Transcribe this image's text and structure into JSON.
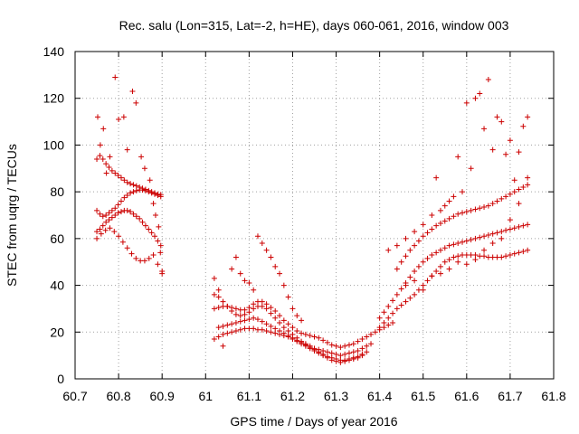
{
  "chart_data": {
    "type": "scatter",
    "title": "Rec. salu (Lon=315, Lat=-2, h=HE), days 060-061, 2016, window 003",
    "xlabel": "GPS time / Days of year 2016",
    "ylabel": "STEC from uqrg / TECUs",
    "xlim": [
      60.7,
      61.8
    ],
    "ylim": [
      0,
      140
    ],
    "xticks": [
      "60.7",
      "60.8",
      "60.9",
      "61",
      "61.1",
      "61.2",
      "61.3",
      "61.4",
      "61.5",
      "61.6",
      "61.7",
      "61.8"
    ],
    "yticks": [
      "0",
      "20",
      "40",
      "60",
      "80",
      "100",
      "120",
      "140"
    ],
    "grid": true,
    "marker": "plus",
    "color": "#cc0000",
    "series": [
      {
        "x": [
          60.75,
          60.757,
          60.764,
          60.771,
          60.778,
          60.785,
          60.792,
          60.799,
          60.806,
          60.813,
          60.82,
          60.827,
          60.834,
          60.841,
          60.848,
          60.855,
          60.862,
          60.869,
          60.876,
          60.883,
          60.89,
          60.897
        ],
        "y": [
          94.0,
          95.5,
          94.0,
          92.0,
          90.5,
          89.0,
          88.0,
          87.0,
          86.0,
          85.0,
          84.0,
          83.5,
          83.0,
          82.5,
          82.0,
          81.5,
          81.0,
          80.5,
          80.0,
          79.5,
          79.0,
          78.8
        ]
      },
      {
        "x": [
          60.75,
          60.757,
          60.764,
          60.771,
          60.778,
          60.785,
          60.792,
          60.799,
          60.806,
          60.813,
          60.82,
          60.827,
          60.834,
          60.841,
          60.848,
          60.855,
          60.862,
          60.869,
          60.876,
          60.883,
          60.89,
          60.897
        ],
        "y": [
          72.0,
          70.5,
          69.5,
          70.0,
          71.0,
          72.0,
          73.0,
          74.5,
          76.0,
          77.5,
          78.5,
          79.5,
          80.0,
          80.5,
          80.8,
          80.8,
          80.5,
          80.0,
          79.5,
          79.0,
          78.5,
          78.0
        ]
      },
      {
        "x": [
          60.75,
          60.757,
          60.764,
          60.771,
          60.778,
          60.785,
          60.792,
          60.799,
          60.806,
          60.813,
          60.82,
          60.827,
          60.834,
          60.841,
          60.848,
          60.855,
          60.862,
          60.869,
          60.876,
          60.883,
          60.89,
          60.897
        ],
        "y": [
          63.0,
          64.0,
          65.5,
          67.0,
          68.0,
          69.0,
          70.0,
          71.0,
          71.5,
          72.0,
          72.0,
          71.5,
          70.5,
          69.5,
          68.5,
          67.0,
          65.5,
          64.0,
          62.5,
          61.0,
          59.0,
          57.0
        ]
      },
      {
        "x": [
          60.75,
          60.76,
          60.77,
          60.78,
          60.79,
          60.8,
          60.81,
          60.82,
          60.83,
          60.84,
          60.85,
          60.86,
          60.87,
          60.88,
          60.89,
          60.9
        ],
        "y": [
          60.0,
          62.0,
          63.5,
          64.5,
          63.0,
          61.0,
          58.5,
          56.0,
          53.5,
          51.5,
          50.5,
          50.5,
          51.5,
          53.0,
          49.0,
          45.0
        ]
      },
      {
        "x": [
          60.752,
          60.758,
          60.765,
          60.772,
          60.78,
          60.792,
          60.8,
          60.812,
          60.82,
          60.832,
          60.84,
          60.852,
          60.86,
          60.872,
          60.88,
          60.885,
          60.892,
          60.896,
          60.9
        ],
        "y": [
          112.0,
          100.0,
          107.0,
          88.0,
          95.0,
          129.0,
          111.0,
          112.0,
          98.0,
          123.0,
          118.0,
          95.0,
          90.0,
          85.0,
          75.0,
          70.0,
          65.0,
          54.0,
          46.0
        ]
      },
      {
        "x": [
          61.02,
          61.03,
          61.04,
          61.05,
          61.06,
          61.07,
          61.08,
          61.09,
          61.1,
          61.11,
          61.12,
          61.13,
          61.14,
          61.15,
          61.16,
          61.17,
          61.18,
          61.19,
          61.2,
          61.21,
          61.22,
          61.23,
          61.24,
          61.25,
          61.26,
          61.27,
          61.28,
          61.29,
          61.3,
          61.31,
          61.32,
          61.33,
          61.34,
          61.35,
          61.36,
          61.37,
          61.38,
          61.39,
          61.4,
          61.41,
          61.42,
          61.43
        ],
        "y": [
          30.0,
          30.5,
          31.0,
          31.0,
          30.5,
          30.0,
          29.5,
          29.5,
          30.5,
          32.0,
          33.0,
          33.0,
          32.0,
          30.5,
          29.0,
          27.0,
          25.0,
          23.5,
          22.0,
          20.5,
          19.5,
          19.0,
          18.5,
          18.0,
          17.5,
          16.5,
          15.5,
          14.5,
          14.0,
          13.5,
          14.0,
          14.5,
          15.0,
          16.0,
          17.0,
          18.0,
          19.0,
          20.0,
          21.0,
          22.0,
          23.0,
          24.0
        ]
      },
      {
        "x": [
          61.02,
          61.03,
          61.04,
          61.05,
          61.06,
          61.07,
          61.08,
          61.09,
          61.1,
          61.11,
          61.12,
          61.13,
          61.14,
          61.15,
          61.16,
          61.17,
          61.18,
          61.19,
          61.2,
          61.21,
          61.22,
          61.23,
          61.24,
          61.25,
          61.26,
          61.27,
          61.28,
          61.29,
          61.3,
          61.31,
          61.32,
          61.33,
          61.34,
          61.35,
          61.36,
          61.37,
          61.38
        ],
        "y": [
          36.0,
          35.0,
          33.0,
          31.0,
          29.0,
          27.5,
          27.0,
          27.5,
          28.5,
          30.0,
          31.0,
          31.0,
          30.0,
          28.0,
          26.0,
          24.0,
          22.0,
          20.5,
          19.0,
          17.5,
          16.0,
          15.0,
          14.0,
          13.0,
          12.5,
          12.0,
          11.5,
          11.0,
          10.5,
          10.0,
          10.5,
          11.0,
          11.5,
          12.0,
          13.0,
          14.0,
          15.0
        ]
      },
      {
        "x": [
          61.03,
          61.04,
          61.05,
          61.06,
          61.07,
          61.08,
          61.09,
          61.1,
          61.11,
          61.12,
          61.13,
          61.14,
          61.15,
          61.16,
          61.17,
          61.18,
          61.19,
          61.2,
          61.21,
          61.22,
          61.23,
          61.24,
          61.25,
          61.26,
          61.27,
          61.28,
          61.29,
          61.3,
          61.31,
          61.32,
          61.33,
          61.34,
          61.35,
          61.36,
          61.37
        ],
        "y": [
          22.0,
          22.5,
          23.0,
          23.5,
          24.0,
          24.5,
          25.0,
          25.5,
          26.0,
          25.5,
          24.5,
          23.5,
          22.5,
          21.5,
          20.5,
          19.5,
          18.5,
          17.5,
          16.5,
          15.5,
          14.5,
          13.5,
          12.5,
          11.5,
          10.5,
          9.5,
          9.0,
          8.5,
          8.0,
          8.0,
          8.5,
          9.0,
          9.5,
          10.5,
          11.5
        ]
      },
      {
        "x": [
          61.02,
          61.03,
          61.04,
          61.05,
          61.06,
          61.07,
          61.08,
          61.09,
          61.1,
          61.11,
          61.12,
          61.13,
          61.14,
          61.15,
          61.16,
          61.17,
          61.18,
          61.19,
          61.2,
          61.21,
          61.22,
          61.23,
          61.24,
          61.25,
          61.26,
          61.27,
          61.28,
          61.29,
          61.3,
          61.31,
          61.32,
          61.33,
          61.34,
          61.35,
          61.36
        ],
        "y": [
          17.0,
          18.0,
          19.0,
          19.5,
          20.0,
          20.5,
          21.0,
          21.5,
          21.5,
          21.5,
          21.0,
          21.0,
          20.5,
          20.0,
          19.5,
          19.0,
          18.5,
          18.0,
          17.0,
          16.0,
          15.0,
          14.0,
          13.0,
          12.0,
          11.0,
          10.0,
          9.0,
          8.0,
          7.5,
          7.0,
          7.5,
          8.0,
          8.5,
          9.0,
          10.0
        ]
      },
      {
        "x": [
          61.02,
          61.03,
          61.04,
          61.06,
          61.07,
          61.08,
          61.09,
          61.1,
          61.11,
          61.12,
          61.13,
          61.14,
          61.15,
          61.16,
          61.17,
          61.18,
          61.19,
          61.2,
          61.21,
          61.22
        ],
        "y": [
          43.0,
          38.0,
          14.0,
          47.0,
          52.0,
          45.0,
          42.0,
          41.0,
          38.0,
          61.0,
          58.0,
          55.0,
          52.0,
          48.0,
          45.0,
          40.0,
          35.0,
          30.0,
          27.0,
          25.0
        ]
      },
      {
        "x": [
          61.4,
          61.41,
          61.42,
          61.43,
          61.44,
          61.45,
          61.46,
          61.47,
          61.48,
          61.49,
          61.5,
          61.51,
          61.52,
          61.53,
          61.54,
          61.55,
          61.56,
          61.57,
          61.58,
          61.59,
          61.6,
          61.61,
          61.62,
          61.63,
          61.64,
          61.65,
          61.66,
          61.67,
          61.68,
          61.69,
          61.7,
          61.71,
          61.72,
          61.73,
          61.74
        ],
        "y": [
          22.0,
          24.0,
          26.0,
          28.0,
          30.0,
          31.5,
          33.0,
          34.5,
          36.0,
          38.0,
          40.0,
          42.0,
          44.0,
          46.0,
          48.0,
          50.0,
          51.0,
          52.0,
          52.5,
          53.0,
          53.0,
          53.0,
          53.0,
          52.5,
          52.5,
          52.0,
          52.0,
          52.0,
          52.0,
          52.5,
          53.0,
          53.5,
          54.0,
          54.5,
          55.0
        ]
      },
      {
        "x": [
          61.4,
          61.41,
          61.42,
          61.43,
          61.44,
          61.45,
          61.46,
          61.47,
          61.48,
          61.49,
          61.5,
          61.51,
          61.52,
          61.53,
          61.54,
          61.55,
          61.56,
          61.57,
          61.58,
          61.59,
          61.6,
          61.61,
          61.62,
          61.63,
          61.64,
          61.65,
          61.66,
          61.67,
          61.68,
          61.69,
          61.7,
          61.71,
          61.72,
          61.73,
          61.74
        ],
        "y": [
          26.0,
          28.5,
          31.0,
          33.5,
          36.0,
          38.5,
          41.0,
          43.5,
          46.0,
          48.0,
          50.0,
          51.5,
          53.0,
          54.0,
          55.0,
          56.0,
          57.0,
          57.5,
          58.0,
          58.5,
          59.0,
          59.5,
          60.0,
          60.5,
          61.0,
          61.5,
          62.0,
          62.5,
          63.0,
          63.5,
          64.0,
          64.5,
          65.0,
          65.5,
          66.0
        ]
      },
      {
        "x": [
          61.44,
          61.45,
          61.46,
          61.47,
          61.48,
          61.49,
          61.5,
          61.51,
          61.52,
          61.53,
          61.54,
          61.55,
          61.56,
          61.57,
          61.58,
          61.59,
          61.6,
          61.61,
          61.62,
          61.63,
          61.64,
          61.65,
          61.66,
          61.67,
          61.68,
          61.69,
          61.7,
          61.71,
          61.72,
          61.73,
          61.74
        ],
        "y": [
          47.0,
          50.0,
          52.5,
          55.0,
          57.0,
          59.0,
          61.0,
          62.5,
          64.0,
          65.5,
          66.5,
          67.5,
          68.5,
          69.5,
          70.5,
          71.0,
          71.5,
          72.0,
          72.5,
          73.0,
          73.5,
          74.0,
          75.0,
          76.0,
          77.0,
          78.0,
          79.0,
          80.0,
          81.0,
          82.0,
          83.0
        ]
      },
      {
        "x": [
          61.42,
          61.44,
          61.46,
          61.48,
          61.5,
          61.52,
          61.53,
          61.54,
          61.55,
          61.56,
          61.57,
          61.58,
          61.59,
          61.6,
          61.61,
          61.62,
          61.63,
          61.64,
          61.65,
          61.66,
          61.67,
          61.68,
          61.69,
          61.7,
          61.71,
          61.72,
          61.73,
          61.74
        ],
        "y": [
          55.0,
          57.0,
          60.0,
          63.0,
          66.0,
          70.0,
          86.0,
          72.0,
          74.0,
          76.0,
          78.0,
          95.0,
          80.0,
          118.0,
          90.0,
          120.0,
          122.0,
          107.0,
          128.0,
          98.0,
          112.0,
          110.0,
          96.0,
          102.0,
          85.0,
          97.0,
          108.0,
          112.0
        ]
      },
      {
        "x": [
          61.46,
          61.48,
          61.5,
          61.52,
          61.54,
          61.56,
          61.58,
          61.6,
          61.62,
          61.64,
          61.66,
          61.68,
          61.7,
          61.72,
          61.74
        ],
        "y": [
          40.0,
          42.0,
          38.0,
          44.0,
          45.0,
          47.0,
          50.0,
          49.0,
          51.0,
          55.0,
          58.0,
          60.0,
          68.0,
          75.0,
          86.0
        ]
      }
    ]
  }
}
